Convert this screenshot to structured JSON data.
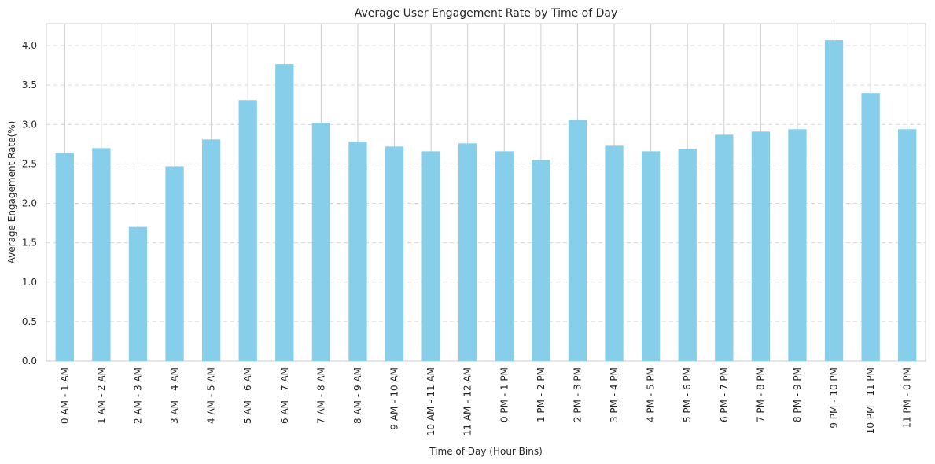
{
  "chart_data": {
    "type": "bar",
    "title": "Average User Engagement Rate by Time of Day",
    "xlabel": "Time of Day (Hour Bins)",
    "ylabel": "Average Engagement Rate(%)",
    "ylim": [
      0,
      4.28
    ],
    "yticks": [
      "0.0",
      "0.5",
      "1.0",
      "1.5",
      "2.0",
      "2.5",
      "3.0",
      "3.5",
      "4.0"
    ],
    "grid": "y-dashed",
    "legend": "none",
    "categories": [
      "0 AM - 1 AM",
      "1 AM - 2 AM",
      "2 AM - 3 AM",
      "3 AM - 4 AM",
      "4 AM - 5 AM",
      "5 AM - 6 AM",
      "6 AM - 7 AM",
      "7 AM - 8 AM",
      "8 AM - 9 AM",
      "9 AM - 10 AM",
      "10 AM - 11 AM",
      "11 AM - 12 AM",
      "0 PM - 1 PM",
      "1 PM - 2 PM",
      "2 PM - 3 PM",
      "3 PM - 4 PM",
      "4 PM - 5 PM",
      "5 PM - 6 PM",
      "6 PM - 7 PM",
      "7 PM - 8 PM",
      "8 PM - 9 PM",
      "9 PM - 10 PM",
      "10 PM - 11 PM",
      "11 PM - 0 PM"
    ],
    "values": [
      2.64,
      2.7,
      1.7,
      2.47,
      2.81,
      3.31,
      3.76,
      3.02,
      2.78,
      2.72,
      2.66,
      2.76,
      2.66,
      2.55,
      3.06,
      2.73,
      2.66,
      2.69,
      2.87,
      2.91,
      2.94,
      4.07,
      3.4,
      2.94
    ],
    "colors": {
      "bar": "#87ceeb",
      "grid": "#d9d9d9",
      "axis": "#cccccc",
      "text": "#262626"
    }
  }
}
